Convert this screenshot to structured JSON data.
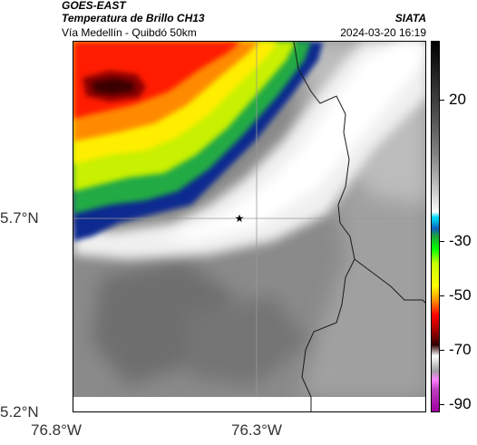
{
  "header": {
    "satellite": "GOES-EAST",
    "product": "Temperatura de Brillo CH13",
    "region": "Vía Medellín - Quibdó 50km",
    "source": "SIATA",
    "datetime": "2024-03-20 16:19"
  },
  "axes": {
    "lat_labels": [
      "5.7°N",
      "5.2°N"
    ],
    "lon_labels": [
      "76.8°W",
      "76.3°W"
    ]
  },
  "colorbar": {
    "labels": [
      "20",
      "-30",
      "-50",
      "-70",
      "-90"
    ]
  },
  "marker": {
    "name": "star-marker"
  }
}
